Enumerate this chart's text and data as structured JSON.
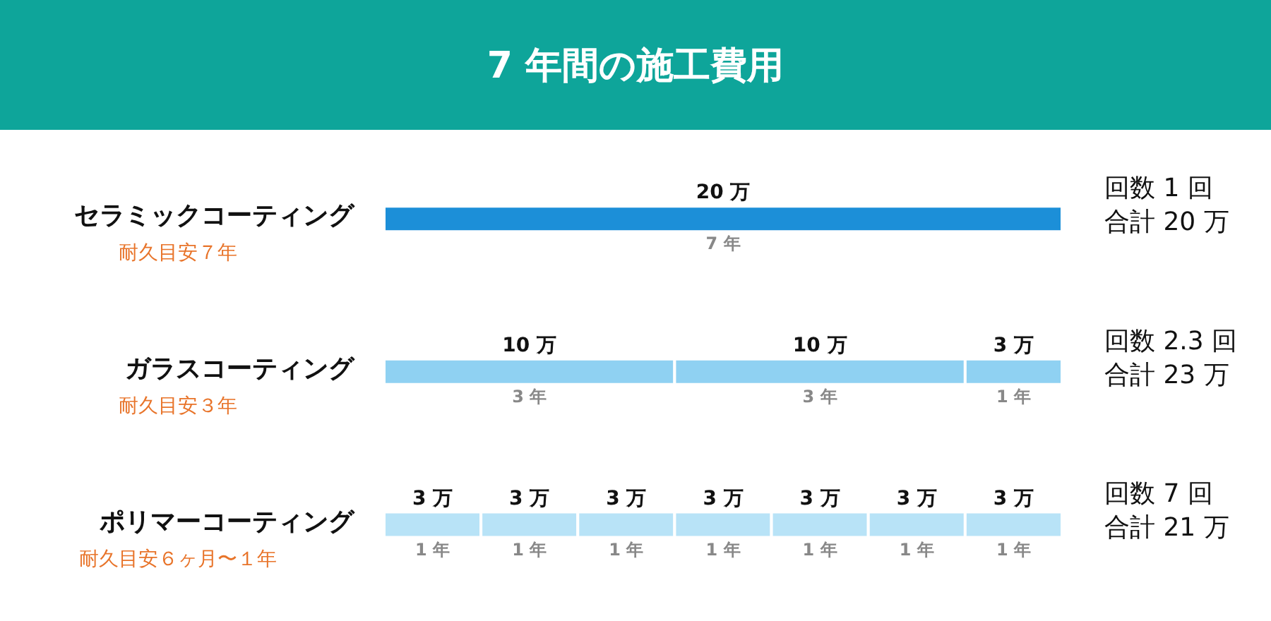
{
  "chart_data": {
    "type": "bar",
    "orientation": "horizontal",
    "stacked": true,
    "title": "7 年間の施工費用",
    "categories": [
      "セラミックコーティング",
      "ガラスコーティング",
      "ポリマーコーティング"
    ],
    "xlim": [
      0,
      7
    ],
    "tick_labels": "y",
    "series": [
      {
        "colors": [
          "#1c8fd8",
          "#8fd1f2",
          "#b8e3f7"
        ],
        "values": [
          7,
          3,
          1
        ],
        "value_labels": [
          "7 年",
          "3 年",
          "1 年"
        ]
      },
      {
        "colors": [
          null,
          "#8fd1f2",
          "#b8e3f7"
        ],
        "values": [
          null,
          3,
          1
        ],
        "value_labels": [
          null,
          "3 年",
          "1 年"
        ]
      },
      {
        "colors": [
          null,
          "#8fd1f2",
          "#b8e3f7"
        ],
        "values": [
          null,
          1,
          1
        ],
        "value_labels": [
          null,
          "1 年",
          "1 年"
        ]
      },
      {
        "colors": [
          null,
          null,
          "#b8e3f7"
        ],
        "values": [
          null,
          null,
          1
        ],
        "value_labels": [
          null,
          null,
          "1 年"
        ]
      },
      {
        "colors": [
          null,
          null,
          "#b8e3f7"
        ],
        "values": [
          null,
          null,
          1
        ],
        "value_labels": [
          null,
          null,
          "1 年"
        ]
      },
      {
        "colors": [
          null,
          null,
          "#b8e3f7"
        ],
        "values": [
          null,
          null,
          1
        ],
        "value_labels": [
          null,
          null,
          "1 年"
        ]
      },
      {
        "colors": [
          null,
          null,
          "#b8e3f7"
        ],
        "values": [
          null,
          null,
          1
        ],
        "value_labels": [
          null,
          null,
          "1 年"
        ]
      }
    ],
    "annotations": [
      "耐久目安７年",
      "耐久目安３年",
      "耐久目安６ヶ月〜１年",
      "回数 1 回",
      "合計 20 万",
      "回数 2.3 回",
      "合計 23 万",
      "回数 7 回",
      "合計 21 万",
      "20 万",
      "10 万",
      "10 万",
      "3 万",
      "3 万",
      "3 万",
      "3 万",
      "3 万",
      "3 万",
      "3 万",
      "3 万"
    ]
  }
}
